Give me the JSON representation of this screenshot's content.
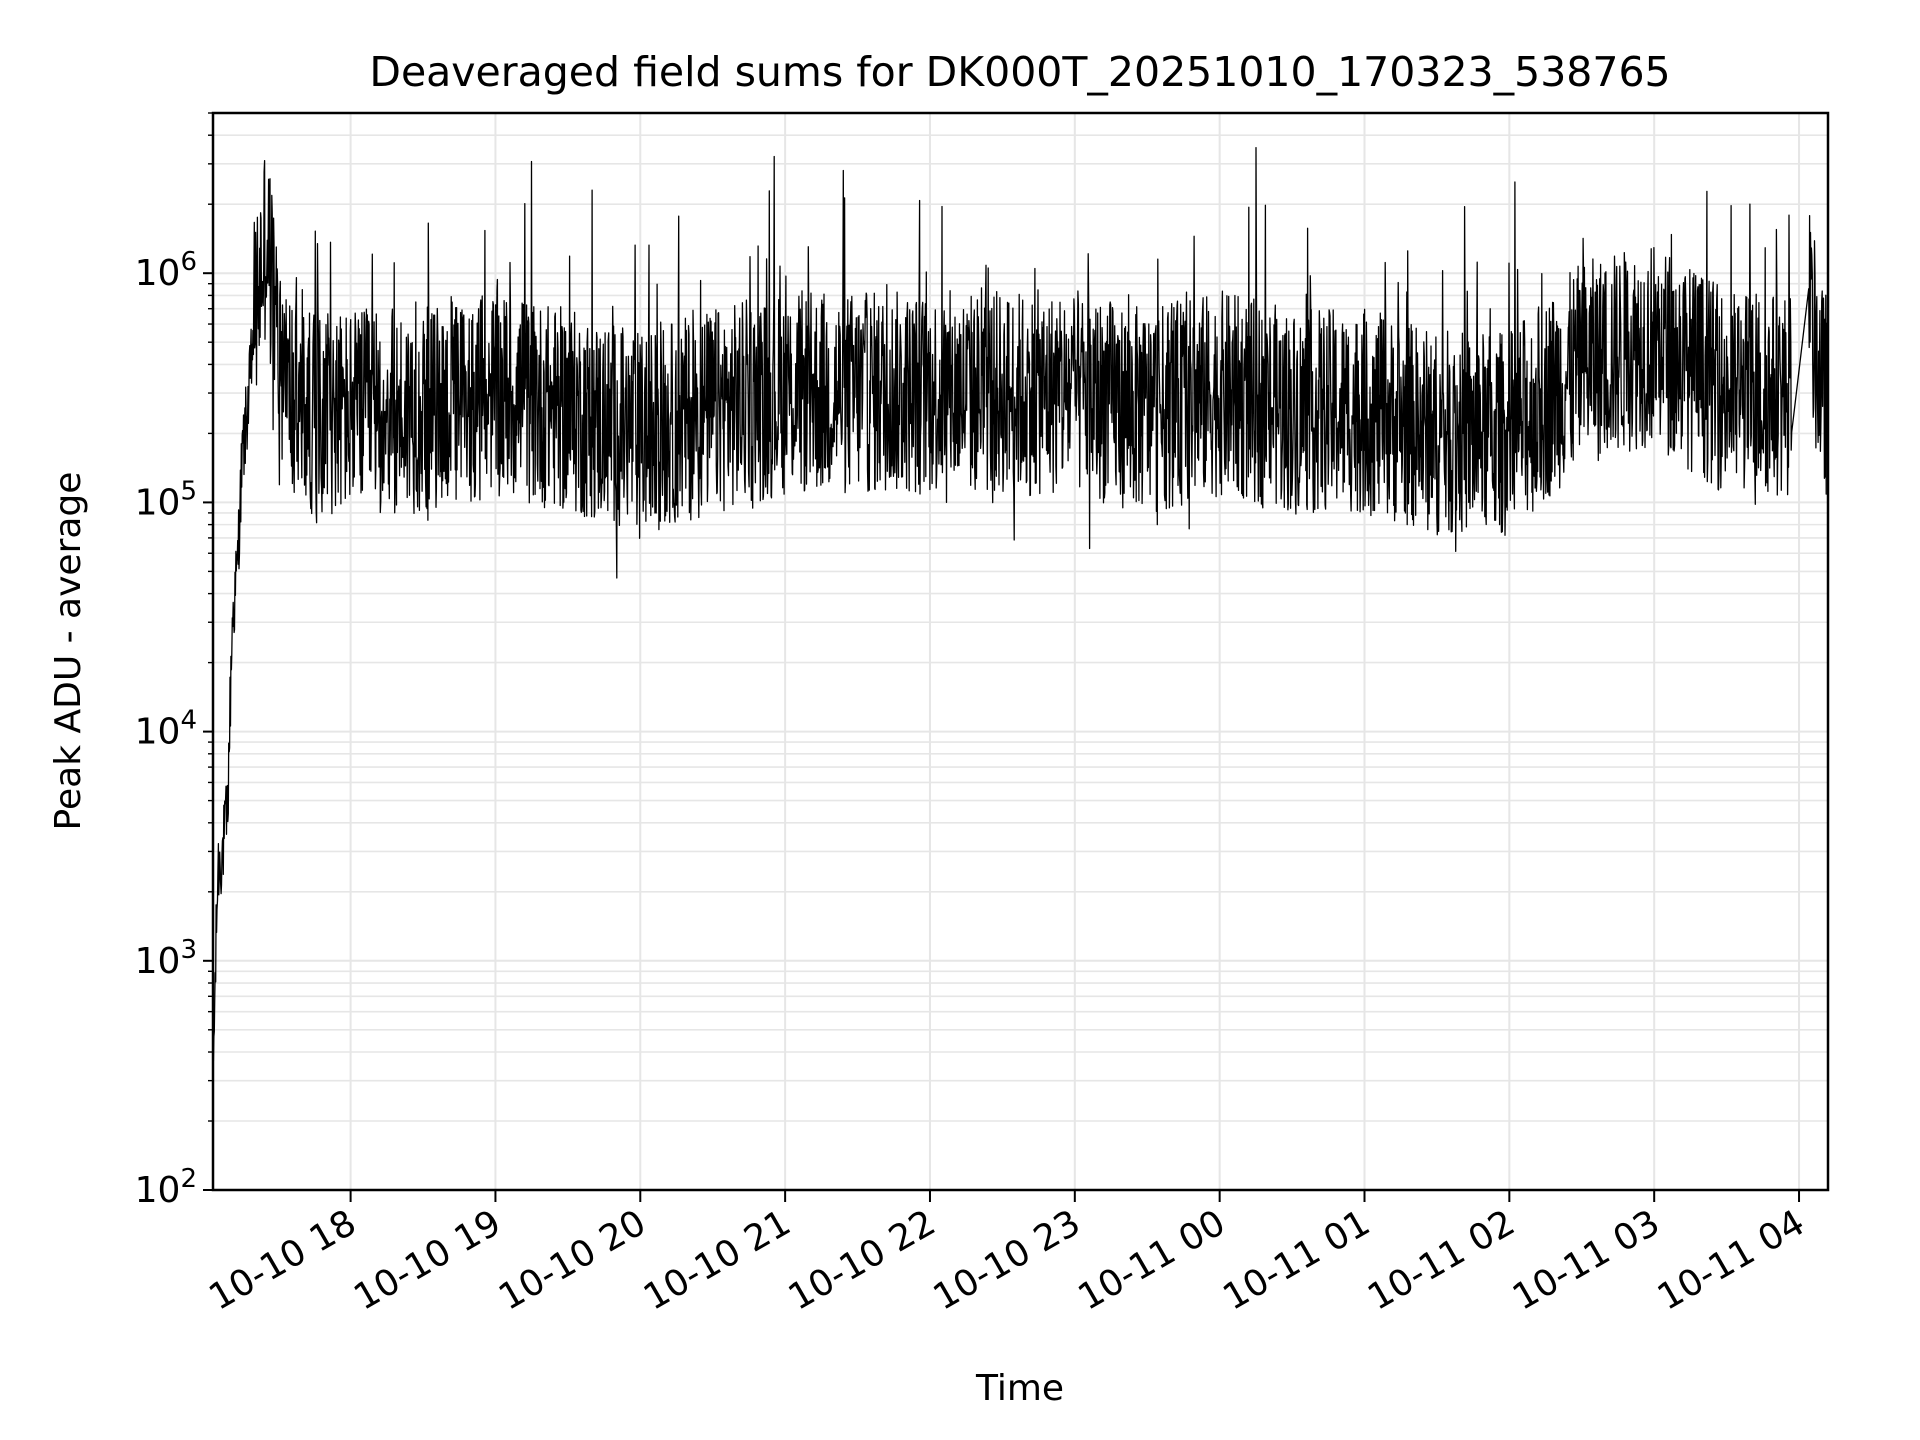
{
  "chart_data": {
    "type": "line",
    "title": "Deaveraged field sums for DK000T_20251010_170323_538765",
    "xlabel": "Time",
    "ylabel": "Peak ADU - average",
    "x_scale": "time",
    "y_scale": "log",
    "xlim": [
      "2025-10-10 17:03",
      "2025-10-11 04:12"
    ],
    "ylim": [
      100,
      5000000
    ],
    "x_ticks": [
      "10-10 18",
      "10-10 19",
      "10-10 20",
      "10-10 21",
      "10-10 22",
      "10-10 23",
      "10-11 00",
      "10-11 01",
      "10-11 02",
      "10-11 03",
      "10-11 04"
    ],
    "y_ticks": [
      {
        "base": "10",
        "exp": "2",
        "value": 100
      },
      {
        "base": "10",
        "exp": "3",
        "value": 1000
      },
      {
        "base": "10",
        "exp": "4",
        "value": 10000
      },
      {
        "base": "10",
        "exp": "5",
        "value": 100000
      },
      {
        "base": "10",
        "exp": "6",
        "value": 1000000
      }
    ],
    "grid": true,
    "line_color": "#000000",
    "grid_color": "#e6e6e6",
    "series": [
      {
        "x": [
          "2025-10-10 17:03",
          "2025-10-10 17:05",
          "2025-10-10 17:07",
          "2025-10-10 17:09",
          "2025-10-10 17:11",
          "2025-10-10 17:13",
          "2025-10-10 17:15",
          "2025-10-10 17:18",
          "2025-10-10 17:20",
          "2025-10-10 17:25",
          "2025-10-10 17:30",
          "2025-10-10 17:35",
          "2025-10-10 17:40",
          "2025-10-10 17:45",
          "2025-10-10 18:00",
          "2025-10-10 18:30",
          "2025-10-10 19:00",
          "2025-10-10 19:30",
          "2025-10-10 20:00",
          "2025-10-10 20:30",
          "2025-10-10 21:00",
          "2025-10-10 21:30",
          "2025-10-10 22:00",
          "2025-10-10 22:30",
          "2025-10-10 23:00",
          "2025-10-10 23:30",
          "2025-10-11 00:00",
          "2025-10-11 00:30",
          "2025-10-11 01:00",
          "2025-10-11 01:30",
          "2025-10-11 02:00",
          "2025-10-11 02:30",
          "2025-10-11 03:00",
          "2025-10-11 03:30",
          "2025-10-11 04:00",
          "2025-10-11 04:05",
          "2025-10-11 04:10"
        ],
        "y": [
          300,
          2500,
          3000,
          4500,
          30000,
          50000,
          150000,
          300000,
          600000,
          1500000,
          500000,
          300000,
          250000,
          250000,
          250000,
          250000,
          300000,
          250000,
          200000,
          250000,
          300000,
          300000,
          300000,
          300000,
          300000,
          250000,
          300000,
          250000,
          250000,
          200000,
          200000,
          400000,
          500000,
          300000,
          300000,
          600000,
          300000
        ],
        "noise_range": [
          50000,
          2500000
        ]
      }
    ]
  }
}
